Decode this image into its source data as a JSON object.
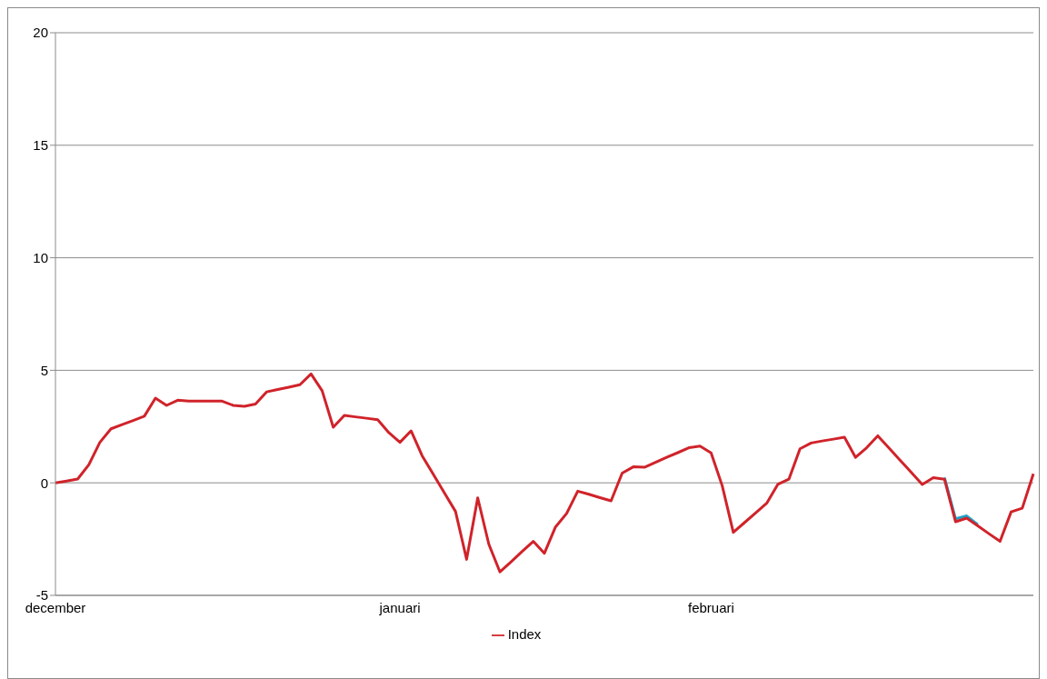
{
  "chart_data": {
    "type": "line",
    "categories": [
      "december",
      null,
      null,
      null,
      null,
      null,
      null,
      null,
      null,
      null,
      null,
      null,
      null,
      null,
      null,
      null,
      null,
      null,
      null,
      null,
      null,
      null,
      null,
      null,
      null,
      null,
      null,
      null,
      null,
      null,
      null,
      "januari",
      null,
      null,
      null,
      null,
      null,
      null,
      null,
      null,
      null,
      null,
      null,
      null,
      null,
      null,
      null,
      null,
      null,
      null,
      null,
      null,
      null,
      null,
      null,
      null,
      null,
      null,
      null,
      "februari",
      null,
      null,
      null,
      null,
      null,
      null,
      null,
      null,
      null,
      null,
      null,
      null,
      null,
      null,
      null,
      null,
      null,
      null,
      null,
      null,
      null,
      null,
      null,
      null,
      null,
      null,
      null,
      null,
      null
    ],
    "series": [
      {
        "color": "#1fa3c9",
        "values": [
          null,
          null,
          null,
          null,
          null,
          null,
          null,
          null,
          null,
          null,
          null,
          null,
          null,
          null,
          null,
          null,
          null,
          null,
          null,
          null,
          null,
          null,
          null,
          null,
          null,
          null,
          null,
          null,
          null,
          null,
          null,
          null,
          null,
          null,
          null,
          null,
          null,
          null,
          null,
          null,
          null,
          null,
          null,
          null,
          null,
          null,
          null,
          null,
          null,
          null,
          null,
          null,
          null,
          null,
          null,
          null,
          null,
          null,
          null,
          null,
          null,
          null,
          null,
          null,
          null,
          null,
          null,
          null,
          null,
          null,
          null,
          null,
          null,
          null,
          null,
          null,
          null,
          null,
          null,
          null,
          0.23,
          -1.6,
          -1.47,
          -1.86,
          null,
          null,
          null,
          null,
          null
        ]
      },
      {
        "name": "Index",
        "color": "#d0232a",
        "values": [
          0,
          0.08,
          0.17,
          0.8,
          1.8,
          2.4,
          2.59,
          2.77,
          2.96,
          3.76,
          3.44,
          3.67,
          3.63,
          3.63,
          3.63,
          3.63,
          3.44,
          3.4,
          3.5,
          4.04,
          4.15,
          4.25,
          4.36,
          4.84,
          4.09,
          2.47,
          3.0,
          2.93,
          2.87,
          2.8,
          2.23,
          1.8,
          2.31,
          1.2,
          0.38,
          -0.45,
          -1.27,
          -3.4,
          -0.67,
          -2.73,
          -3.96,
          -3.51,
          -3.05,
          -2.6,
          -3.13,
          -1.96,
          -1.36,
          -0.37,
          -0.51,
          -0.66,
          -0.8,
          0.43,
          0.71,
          0.69,
          0.91,
          1.13,
          1.34,
          1.56,
          1.63,
          1.33,
          -0.13,
          -2.2,
          -1.77,
          -1.34,
          -0.91,
          -0.07,
          0.16,
          1.51,
          1.77,
          1.86,
          1.94,
          2.03,
          1.13,
          1.56,
          2.09,
          1.55,
          1.01,
          0.47,
          -0.07,
          0.23,
          0.16,
          -1.73,
          -1.57,
          -1.91,
          -2.26,
          -2.6,
          -1.29,
          -1.13,
          0.4
        ]
      }
    ],
    "ylim": [
      -5,
      20
    ],
    "yticks": [
      -5,
      0,
      5,
      10,
      15,
      20
    ],
    "grid": "y",
    "legend": "bottom"
  }
}
